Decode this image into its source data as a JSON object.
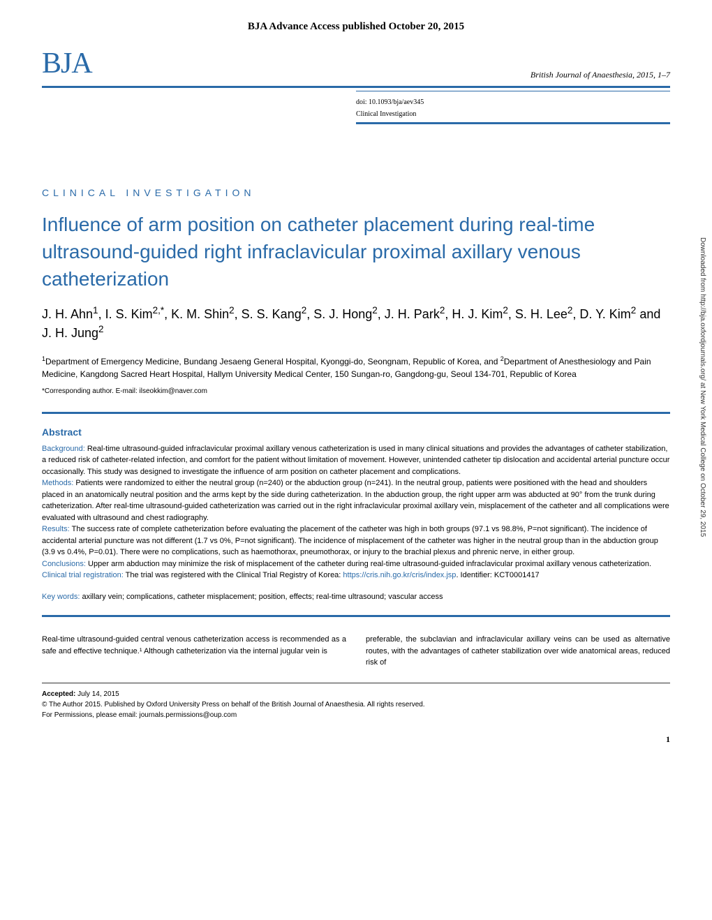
{
  "colors": {
    "accent": "#2a6aa8",
    "text": "#222222",
    "rule": "#2a6aa8",
    "muted": "#555555"
  },
  "header": {
    "advance_access": "BJA Advance Access published October 20, 2015",
    "logo": "BJA",
    "journal_line": "British Journal of Anaesthesia, 2015, 1–7",
    "doi": "doi: 10.1093/bja/aev345",
    "doc_type": "Clinical Investigation"
  },
  "section_label": "CLINICAL INVESTIGATION",
  "title": "Influence of arm position on catheter placement during real-time ultrasound-guided right infraclavicular proximal axillary venous catheterization",
  "authors_html": "J. H. Ahn<sup>1</sup>, I. S. Kim<sup>2,*</sup>, K. M. Shin<sup>2</sup>, S. S. Kang<sup>2</sup>, S. J. Hong<sup>2</sup>, J. H. Park<sup>2</sup>, H. J. Kim<sup>2</sup>, S. H. Lee<sup>2</sup>, D. Y. Kim<sup>2</sup> and J. H. Jung<sup>2</sup>",
  "affiliations_html": "<sup>1</sup>Department of Emergency Medicine, Bundang Jesaeng General Hospital, Kyonggi-do, Seongnam, Republic of Korea, and <sup>2</sup>Department of Anesthesiology and Pain Medicine, Kangdong Sacred Heart Hospital, Hallym University Medical Center, 150 Sungan-ro, Gangdong-gu, Seoul 134-701, Republic of Korea",
  "corresponding": "*Corresponding author. E-mail: ilseokkim@naver.com",
  "abstract": {
    "heading": "Abstract",
    "background_label": "Background:",
    "background": "Real-time ultrasound-guided infraclavicular proximal axillary venous catheterization is used in many clinical situations and provides the advantages of catheter stabilization, a reduced risk of catheter-related infection, and comfort for the patient without limitation of movement. However, unintended catheter tip dislocation and accidental arterial puncture occur occasionally. This study was designed to investigate the influence of arm position on catheter placement and complications.",
    "methods_label": "Methods:",
    "methods": "Patients were randomized to either the neutral group (n=240) or the abduction group (n=241). In the neutral group, patients were positioned with the head and shoulders placed in an anatomically neutral position and the arms kept by the side during catheterization. In the abduction group, the right upper arm was abducted at 90° from the trunk during catheterization. After real-time ultrasound-guided catheterization was carried out in the right infraclavicular proximal axillary vein, misplacement of the catheter and all complications were evaluated with ultrasound and chest radiography.",
    "results_label": "Results:",
    "results": "The success rate of complete catheterization before evaluating the placement of the catheter was high in both groups (97.1 vs 98.8%, P=not significant). The incidence of accidental arterial puncture was not different (1.7 vs 0%, P=not significant). The incidence of misplacement of the catheter was higher in the neutral group than in the abduction group (3.9 vs 0.4%, P=0.01). There were no complications, such as haemothorax, pneumothorax, or injury to the brachial plexus and phrenic nerve, in either group.",
    "conclusions_label": "Conclusions:",
    "conclusions": "Upper arm abduction may minimize the risk of misplacement of the catheter during real-time ultrasound-guided infraclavicular proximal axillary venous catheterization.",
    "reg_label": "Clinical trial registration:",
    "reg_text": "The trial was registered with the Clinical Trial Registry of Korea: ",
    "reg_url": "https://cris.nih.go.kr/cris/index.jsp",
    "reg_id": ". Identifier: KCT0001417",
    "keywords_label": "Key words:",
    "keywords": "axillary vein; complications, catheter misplacement; position, effects; real-time ultrasound; vascular access"
  },
  "body": {
    "col1": "Real-time ultrasound-guided central venous catheterization access is recommended as a safe and effective technique.¹ Although catheterization via the internal jugular vein is",
    "col2": "preferable, the subclavian and infraclavicular axillary veins can be used as alternative routes, with the advantages of catheter stabilization over wide anatomical areas, reduced risk of"
  },
  "footer": {
    "accepted": "Accepted: July 14, 2015",
    "copyright": "© The Author 2015. Published by Oxford University Press on behalf of the British Journal of Anaesthesia. All rights reserved.",
    "permissions": "For Permissions, please email: journals.permissions@oup.com"
  },
  "page_number": "1",
  "side_text": "Downloaded from http://bja.oxfordjournals.org/ at New York Medical College on October 29, 2015"
}
